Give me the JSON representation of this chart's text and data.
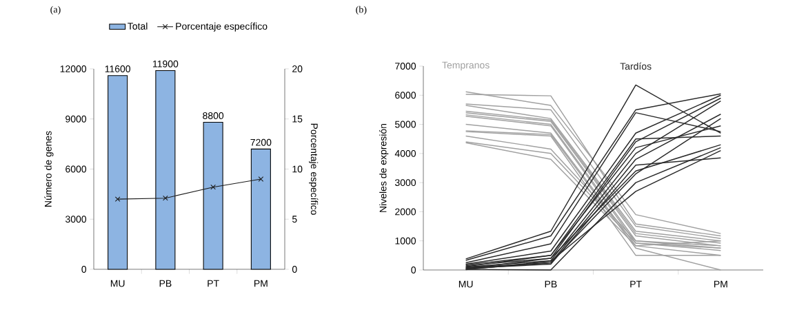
{
  "chart_data": [
    {
      "type": "bar",
      "title": "(a)",
      "categories": [
        "MU",
        "PB",
        "PT",
        "PM"
      ],
      "ylabel": "Número de genes",
      "y2label": "Porcentaje específico",
      "ylim": [
        0,
        12000
      ],
      "yticks": [
        0,
        3000,
        6000,
        9000,
        12000
      ],
      "y2lim": [
        0,
        20
      ],
      "y2ticks": [
        0,
        5,
        10,
        15,
        20
      ],
      "legend": "top",
      "series": [
        {
          "name": "Total",
          "type": "bar",
          "color": "#8db4e2",
          "values": [
            11600,
            11900,
            8800,
            7200
          ],
          "value_labels": [
            "11600",
            "11900",
            "8800",
            "7200"
          ]
        },
        {
          "name": "Porcentaje específico",
          "type": "line",
          "axis": "y2",
          "color": "#1a1a1a",
          "marker": "cross",
          "values": [
            7,
            7.1,
            8.2,
            9
          ]
        }
      ]
    },
    {
      "type": "line",
      "title": "(b)",
      "categories": [
        "MU",
        "PB",
        "PT",
        "PM"
      ],
      "ylabel": "Niveles de expresión",
      "ylim": [
        0,
        7000
      ],
      "yticks": [
        0,
        1000,
        2000,
        3000,
        4000,
        5000,
        6000,
        7000
      ],
      "legend": false,
      "marker": "none",
      "series": [
        {
          "name": "Tempranos",
          "color": "#a0a0a0",
          "values": [
            6120,
            5650,
            1900,
            1250
          ]
        },
        {
          "color": "#a0a0a0",
          "values": [
            6030,
            5980,
            1580,
            1170
          ]
        },
        {
          "color": "#a0a0a0",
          "values": [
            5700,
            5500,
            1500,
            1080
          ]
        },
        {
          "color": "#a0a0a0",
          "values": [
            5650,
            5200,
            1330,
            1000
          ]
        },
        {
          "color": "#a0a0a0",
          "values": [
            5450,
            5150,
            1250,
            920
          ]
        },
        {
          "color": "#a0a0a0",
          "values": [
            5400,
            5100,
            1170,
            830
          ]
        },
        {
          "color": "#a0a0a0",
          "values": [
            5330,
            5000,
            1000,
            750
          ]
        },
        {
          "color": "#a0a0a0",
          "values": [
            5280,
            4950,
            920,
            670
          ]
        },
        {
          "color": "#a0a0a0",
          "values": [
            5000,
            4700,
            830,
            500
          ]
        },
        {
          "color": "#a0a0a0",
          "values": [
            4780,
            4650,
            750,
            0
          ]
        },
        {
          "color": "#a0a0a0",
          "values": [
            4750,
            4600,
            500,
            500
          ]
        },
        {
          "color": "#a0a0a0",
          "values": [
            4600,
            4150,
            1000,
            830
          ]
        },
        {
          "color": "#a0a0a0",
          "values": [
            4400,
            4000,
            920,
            750
          ]
        },
        {
          "color": "#a0a0a0",
          "values": [
            4370,
            3800,
            830,
            1000
          ]
        },
        {
          "name": "Tardíos",
          "color": "#2a2a2a",
          "values": [
            380,
            1330,
            6350,
            4700
          ]
        },
        {
          "color": "#2a2a2a",
          "values": [
            330,
            1170,
            5500,
            6050
          ]
        },
        {
          "color": "#2a2a2a",
          "values": [
            250,
            900,
            5400,
            4750
          ]
        },
        {
          "color": "#2a2a2a",
          "values": [
            200,
            650,
            4700,
            6000
          ]
        },
        {
          "color": "#2a2a2a",
          "values": [
            180,
            500,
            4500,
            4600
          ]
        },
        {
          "color": "#2a2a2a",
          "values": [
            150,
            400,
            4400,
            5900
          ]
        },
        {
          "color": "#2a2a2a",
          "values": [
            100,
            320,
            4000,
            5800
          ]
        },
        {
          "color": "#2a2a2a",
          "values": [
            80,
            250,
            3800,
            5350
          ]
        },
        {
          "color": "#2a2a2a",
          "values": [
            50,
            400,
            3400,
            4300
          ]
        },
        {
          "color": "#2a2a2a",
          "values": [
            30,
            250,
            3300,
            5200
          ]
        },
        {
          "color": "#2a2a2a",
          "values": [
            20,
            0,
            3000,
            4200
          ]
        },
        {
          "color": "#2a2a2a",
          "values": [
            10,
            300,
            2700,
            4100
          ]
        },
        {
          "color": "#2a2a2a",
          "values": [
            60,
            200,
            3600,
            3850
          ]
        },
        {
          "color": "#2a2a2a",
          "values": [
            120,
            500,
            4200,
            4950
          ]
        }
      ]
    }
  ]
}
